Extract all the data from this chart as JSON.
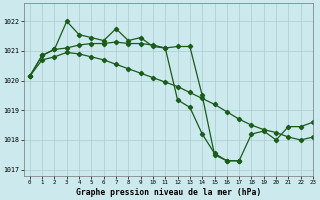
{
  "title": "Graphe pression niveau de la mer (hPa)",
  "bg_color": "#cce9ed",
  "grid_color": "#aacccc",
  "line_color": "#1a5c1a",
  "xlim": [
    -0.5,
    23
  ],
  "ylim": [
    1016.8,
    1022.6
  ],
  "yticks": [
    1017,
    1018,
    1019,
    1020,
    1021,
    1022
  ],
  "xticks": [
    0,
    1,
    2,
    3,
    4,
    5,
    6,
    7,
    8,
    9,
    10,
    11,
    12,
    13,
    14,
    15,
    16,
    17,
    18,
    19,
    20,
    21,
    22,
    23
  ],
  "line1_x": [
    0,
    1,
    2,
    3,
    4,
    5,
    6,
    7,
    8,
    9,
    10,
    11,
    12,
    13,
    14,
    15,
    16,
    17,
    18,
    19,
    20,
    21,
    22,
    23
  ],
  "line1_y": [
    1020.15,
    1020.85,
    1021.05,
    1022.0,
    1021.55,
    1021.45,
    1021.35,
    1021.75,
    1021.35,
    1021.45,
    1021.15,
    1021.1,
    1021.15,
    1021.15,
    1019.5,
    1017.5,
    1017.3,
    1017.3,
    1018.2,
    1018.3,
    1018.0,
    1018.45,
    1018.45,
    1018.6
  ],
  "line2_x": [
    0,
    1,
    2,
    3,
    4,
    5,
    6,
    7,
    8,
    9,
    10,
    11,
    12,
    13,
    14,
    15,
    16,
    17
  ],
  "line2_y": [
    1020.15,
    1020.85,
    1021.05,
    1021.1,
    1021.2,
    1021.25,
    1021.25,
    1021.3,
    1021.25,
    1021.25,
    1021.2,
    1021.1,
    1019.35,
    1019.1,
    1018.2,
    1017.55,
    1017.3,
    1017.3
  ],
  "line3_x": [
    0,
    1,
    2,
    3,
    4,
    5,
    6,
    7,
    8,
    9,
    10,
    11,
    12,
    13,
    14,
    15,
    16,
    17,
    18,
    19,
    20,
    21,
    22,
    23
  ],
  "line3_y": [
    1020.15,
    1020.7,
    1020.8,
    1020.95,
    1020.9,
    1020.8,
    1020.7,
    1020.55,
    1020.4,
    1020.25,
    1020.1,
    1019.95,
    1019.8,
    1019.6,
    1019.4,
    1019.2,
    1018.95,
    1018.7,
    1018.5,
    1018.35,
    1018.25,
    1018.1,
    1018.0,
    1018.1
  ]
}
